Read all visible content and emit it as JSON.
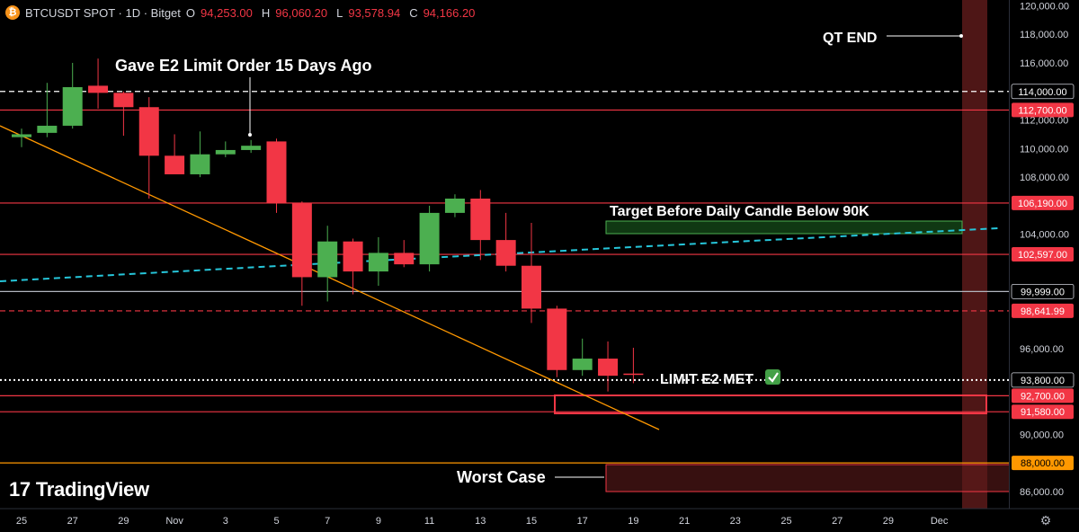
{
  "header": {
    "symbol": "BTCUSDT SPOT · 1D · Bitget",
    "open_label": "O",
    "open_value": "94,253.00",
    "high_label": "H",
    "high_value": "96,060.20",
    "low_label": "L",
    "low_value": "93,578.94",
    "close_label": "C",
    "close_value": "94,166.20",
    "coin_icon": "bitcoin-icon"
  },
  "branding": {
    "logo_mark": "17",
    "logo_text": "TradingView"
  },
  "settings_icon": "gear-icon",
  "chart_data": {
    "type": "candlestick",
    "title": "",
    "xlabel": "",
    "ylabel": "",
    "ylim": [
      84800,
      120400
    ],
    "x_start": "2025-10-25",
    "x_tick_labels": [
      "25",
      "27",
      "29",
      "Nov",
      "3",
      "5",
      "7",
      "9",
      "11",
      "13",
      "15",
      "17",
      "19",
      "21",
      "23",
      "25",
      "27",
      "29",
      "Dec"
    ],
    "y_tick_labels": [
      "120,000.00",
      "118,000.00",
      "116,000.00",
      "112,000.00",
      "110,000.00",
      "108,000.00",
      "104,000.00",
      "96,000.00",
      "90,000.00",
      "86,000.00"
    ],
    "candles": [
      {
        "date": "2025-10-25",
        "open": 110800,
        "high": 111400,
        "low": 110100,
        "close": 111000
      },
      {
        "date": "2025-10-26",
        "open": 111100,
        "high": 114600,
        "low": 110800,
        "close": 111600
      },
      {
        "date": "2025-10-27",
        "open": 111600,
        "high": 116000,
        "low": 111400,
        "close": 114300
      },
      {
        "date": "2025-10-28",
        "open": 114400,
        "high": 116300,
        "low": 112800,
        "close": 113900
      },
      {
        "date": "2025-10-29",
        "open": 113900,
        "high": 114000,
        "low": 110900,
        "close": 112900
      },
      {
        "date": "2025-10-30",
        "open": 112900,
        "high": 113600,
        "low": 106500,
        "close": 109500
      },
      {
        "date": "2025-10-31",
        "open": 109500,
        "high": 111000,
        "low": 108300,
        "close": 108200
      },
      {
        "date": "2025-11-01",
        "open": 108200,
        "high": 111200,
        "low": 108000,
        "close": 109600
      },
      {
        "date": "2025-11-02",
        "open": 109600,
        "high": 110500,
        "low": 109400,
        "close": 109900
      },
      {
        "date": "2025-11-03",
        "open": 109900,
        "high": 110600,
        "low": 109700,
        "close": 110200
      },
      {
        "date": "2025-11-04",
        "open": 110500,
        "high": 110700,
        "low": 105500,
        "close": 106200
      },
      {
        "date": "2025-11-05",
        "open": 106200,
        "high": 106300,
        "low": 99000,
        "close": 101000
      },
      {
        "date": "2025-11-06",
        "open": 101000,
        "high": 104600,
        "low": 99300,
        "close": 103500
      },
      {
        "date": "2025-11-07",
        "open": 103500,
        "high": 103700,
        "low": 99800,
        "close": 101400
      },
      {
        "date": "2025-11-08",
        "open": 101400,
        "high": 103800,
        "low": 100400,
        "close": 102700
      },
      {
        "date": "2025-11-09",
        "open": 102700,
        "high": 103600,
        "low": 101700,
        "close": 101900
      },
      {
        "date": "2025-11-10",
        "open": 101900,
        "high": 106000,
        "low": 101400,
        "close": 105500
      },
      {
        "date": "2025-11-11",
        "open": 105500,
        "high": 106800,
        "low": 105200,
        "close": 106500
      },
      {
        "date": "2025-11-12",
        "open": 106500,
        "high": 107100,
        "low": 102200,
        "close": 103600
      },
      {
        "date": "2025-11-13",
        "open": 103600,
        "high": 105500,
        "low": 101400,
        "close": 101800
      },
      {
        "date": "2025-11-14",
        "open": 101800,
        "high": 104800,
        "low": 97800,
        "close": 98800
      },
      {
        "date": "2025-11-15",
        "open": 98800,
        "high": 99000,
        "low": 94000,
        "close": 94500
      },
      {
        "date": "2025-11-16",
        "open": 94500,
        "high": 96700,
        "low": 94100,
        "close": 95300
      },
      {
        "date": "2025-11-17",
        "open": 95300,
        "high": 96500,
        "low": 93000,
        "close": 94100
      },
      {
        "date": "2025-11-18",
        "open": 94253,
        "high": 96060.2,
        "low": 93578.94,
        "close": 94166.2
      }
    ],
    "price_lines": [
      {
        "price": 114000,
        "label": "114,000.00",
        "style": "dashed",
        "color": "#ffffff",
        "badge": "dark"
      },
      {
        "price": 112700,
        "label": "112,700.00",
        "style": "solid",
        "color": "#f23645",
        "badge": "red"
      },
      {
        "price": 106190,
        "label": "106,190.00",
        "style": "solid",
        "color": "#f23645",
        "badge": "red"
      },
      {
        "price": 102597,
        "label": "102,597.00",
        "style": "solid",
        "color": "#f23645",
        "badge": "red"
      },
      {
        "price": 99999,
        "label": "99,999.00",
        "style": "solid",
        "color": "#b2b5be",
        "badge": "dark"
      },
      {
        "price": 98641.99,
        "label": "98,641.99",
        "style": "dashed",
        "color": "#f23645",
        "badge": "red"
      },
      {
        "price": 93800,
        "label": "93,800.00",
        "style": "dotted",
        "color": "#ffffff",
        "badge": "dark"
      },
      {
        "price": 92700,
        "label": "92,700.00",
        "style": "solid",
        "color": "#f23645",
        "badge": "red"
      },
      {
        "price": 91580,
        "label": "91,580.00",
        "style": "solid",
        "color": "#f23645",
        "badge": "red"
      },
      {
        "price": 88000,
        "label": "88,000.00",
        "style": "solid",
        "color": "#ff9800",
        "badge": "orange"
      }
    ],
    "annotations": {
      "gave_order": "Gave E2 Limit Order 15 Days Ago",
      "target": "Target Before Daily Candle Below 90K",
      "limit_met": "LIMIT E2 MET",
      "limit_met_icon": "check-mark-icon",
      "worst_case": "Worst Case",
      "qt_end": "QT END"
    },
    "colors": {
      "bull": "#4caf50",
      "bear": "#f23645",
      "trendline": "#ff9800",
      "moving_average": "#26c6da",
      "target_zone": "#1b5e20",
      "qt_zone": "#5c1a1a"
    }
  }
}
